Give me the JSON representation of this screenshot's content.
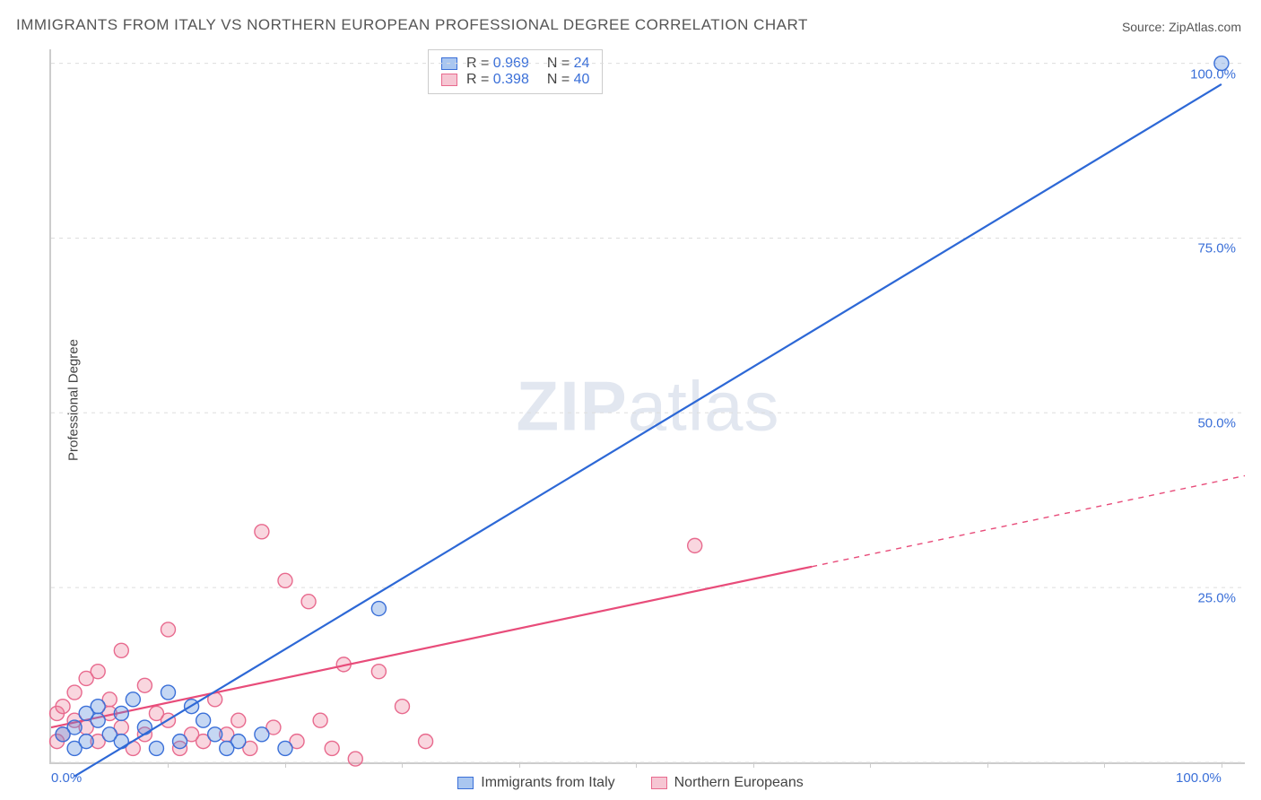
{
  "title": "IMMIGRANTS FROM ITALY VS NORTHERN EUROPEAN PROFESSIONAL DEGREE CORRELATION CHART",
  "source": "Source: ZipAtlas.com",
  "ylabel": "Professional Degree",
  "watermark_zip": "ZIP",
  "watermark_atlas": "atlas",
  "series": {
    "blue": {
      "label": "Immigrants from Italy",
      "swatch_fill": "#a9c6f0",
      "swatch_stroke": "#3a6fd8",
      "line_color": "#2d68d6",
      "point_fill": "rgba(90,140,220,0.35)",
      "point_stroke": "#3a6fd8",
      "R_label": "R =",
      "R_value": "0.969",
      "N_label": "N =",
      "N_value": "24",
      "trend": {
        "x1": 2,
        "y1": -2,
        "x2": 100,
        "y2": 97
      },
      "trend_dash": null,
      "points": [
        {
          "x": 100,
          "y": 100
        },
        {
          "x": 28,
          "y": 22
        },
        {
          "x": 12,
          "y": 8
        },
        {
          "x": 10,
          "y": 10
        },
        {
          "x": 8,
          "y": 5
        },
        {
          "x": 6,
          "y": 7
        },
        {
          "x": 5,
          "y": 4
        },
        {
          "x": 4,
          "y": 6
        },
        {
          "x": 3,
          "y": 3
        },
        {
          "x": 2,
          "y": 5
        },
        {
          "x": 2,
          "y": 2
        },
        {
          "x": 1,
          "y": 4
        },
        {
          "x": 11,
          "y": 3
        },
        {
          "x": 14,
          "y": 4
        },
        {
          "x": 16,
          "y": 3
        },
        {
          "x": 18,
          "y": 4
        },
        {
          "x": 20,
          "y": 2
        },
        {
          "x": 9,
          "y": 2
        },
        {
          "x": 7,
          "y": 9
        },
        {
          "x": 13,
          "y": 6
        },
        {
          "x": 15,
          "y": 2
        },
        {
          "x": 4,
          "y": 8
        },
        {
          "x": 6,
          "y": 3
        },
        {
          "x": 3,
          "y": 7
        }
      ]
    },
    "pink": {
      "label": "Northern Europeans",
      "swatch_fill": "#f6c6d3",
      "swatch_stroke": "#e86a8e",
      "line_color": "#e84c7a",
      "point_fill": "rgba(235,120,150,0.30)",
      "point_stroke": "#e86a8e",
      "R_label": "R =",
      "R_value": "0.398",
      "N_label": "N =",
      "N_value": "40",
      "trend_solid": {
        "x1": 0,
        "y1": 5,
        "x2": 65,
        "y2": 28
      },
      "trend_dash": {
        "x1": 65,
        "y1": 28,
        "x2": 102,
        "y2": 41
      },
      "points": [
        {
          "x": 55,
          "y": 31
        },
        {
          "x": 18,
          "y": 33
        },
        {
          "x": 20,
          "y": 26
        },
        {
          "x": 22,
          "y": 23
        },
        {
          "x": 10,
          "y": 19
        },
        {
          "x": 6,
          "y": 16
        },
        {
          "x": 25,
          "y": 14
        },
        {
          "x": 28,
          "y": 13
        },
        {
          "x": 30,
          "y": 8
        },
        {
          "x": 32,
          "y": 3
        },
        {
          "x": 24,
          "y": 2
        },
        {
          "x": 26,
          "y": 0.5
        },
        {
          "x": 12,
          "y": 4
        },
        {
          "x": 14,
          "y": 9
        },
        {
          "x": 16,
          "y": 6
        },
        {
          "x": 8,
          "y": 11
        },
        {
          "x": 9,
          "y": 7
        },
        {
          "x": 5,
          "y": 9
        },
        {
          "x": 3,
          "y": 12
        },
        {
          "x": 2,
          "y": 6
        },
        {
          "x": 1,
          "y": 4
        },
        {
          "x": 0.5,
          "y": 7
        },
        {
          "x": 4,
          "y": 3
        },
        {
          "x": 7,
          "y": 2
        },
        {
          "x": 11,
          "y": 2
        },
        {
          "x": 13,
          "y": 3
        },
        {
          "x": 15,
          "y": 4
        },
        {
          "x": 17,
          "y": 2
        },
        {
          "x": 19,
          "y": 5
        },
        {
          "x": 21,
          "y": 3
        },
        {
          "x": 23,
          "y": 6
        },
        {
          "x": 2,
          "y": 10
        },
        {
          "x": 4,
          "y": 13
        },
        {
          "x": 6,
          "y": 5
        },
        {
          "x": 1,
          "y": 8
        },
        {
          "x": 3,
          "y": 5
        },
        {
          "x": 5,
          "y": 7
        },
        {
          "x": 0.5,
          "y": 3
        },
        {
          "x": 8,
          "y": 4
        },
        {
          "x": 10,
          "y": 6
        }
      ]
    }
  },
  "axes": {
    "xlim": [
      0,
      102
    ],
    "ylim": [
      0,
      102
    ],
    "x_ticks": [
      10,
      20,
      30,
      40,
      50,
      60,
      70,
      80,
      90,
      100
    ],
    "y_gridlines": [
      0,
      25,
      50,
      75,
      100
    ],
    "y_tick_labels": [
      {
        "v": 25,
        "t": "25.0%"
      },
      {
        "v": 50,
        "t": "50.0%"
      },
      {
        "v": 75,
        "t": "75.0%"
      },
      {
        "v": 100,
        "t": "100.0%"
      }
    ],
    "x_tick_labels": [
      {
        "v": 0,
        "t": "0.0%"
      },
      {
        "v": 100,
        "t": "100.0%"
      }
    ],
    "grid_color": "#dddddd",
    "axis_color": "#cccccc",
    "tick_label_color": "#3a6fd8"
  },
  "style": {
    "point_radius": 8,
    "line_width": 2.2,
    "dash_pattern": "6,6",
    "title_color": "#555555",
    "background": "#ffffff"
  }
}
